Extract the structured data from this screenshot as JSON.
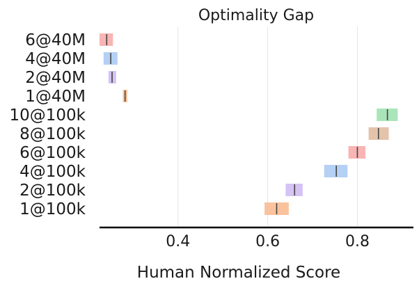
{
  "chart_data": {
    "type": "interval",
    "title": "Optimality Gap",
    "xlabel": "Human Normalized Score",
    "ylabel": "",
    "xlim": [
      0.225,
      0.925
    ],
    "xticks": [
      0.4,
      0.6,
      0.8
    ],
    "xtick_labels": [
      "0.4",
      "0.6",
      "0.8"
    ],
    "grid": true,
    "categories": [
      "6@40M",
      "4@40M",
      "2@40M",
      "1@40M",
      "10@100k",
      "8@100k",
      "6@100k",
      "4@100k",
      "2@100k",
      "1@100k"
    ],
    "series": [
      {
        "values": [
          {
            "low": 0.225,
            "high": 0.255,
            "median": 0.241,
            "color": "#f7a8a6"
          },
          {
            "low": 0.234,
            "high": 0.265,
            "median": 0.25,
            "color": "#a7c8f2"
          },
          {
            "low": 0.245,
            "high": 0.262,
            "median": 0.253,
            "color": "#cdb8f2"
          },
          {
            "low": 0.277,
            "high": 0.287,
            "median": 0.282,
            "color": "#f9b98c"
          },
          {
            "low": 0.843,
            "high": 0.89,
            "median": 0.867,
            "color": "#9be0ad"
          },
          {
            "low": 0.825,
            "high": 0.87,
            "median": 0.847,
            "color": "#dfb99c"
          },
          {
            "low": 0.78,
            "high": 0.818,
            "median": 0.8,
            "color": "#f7a8a6"
          },
          {
            "low": 0.726,
            "high": 0.778,
            "median": 0.753,
            "color": "#a7c8f2"
          },
          {
            "low": 0.64,
            "high": 0.678,
            "median": 0.66,
            "color": "#cdb8f2"
          },
          {
            "low": 0.593,
            "high": 0.647,
            "median": 0.62,
            "color": "#f9b98c"
          }
        ]
      }
    ]
  }
}
